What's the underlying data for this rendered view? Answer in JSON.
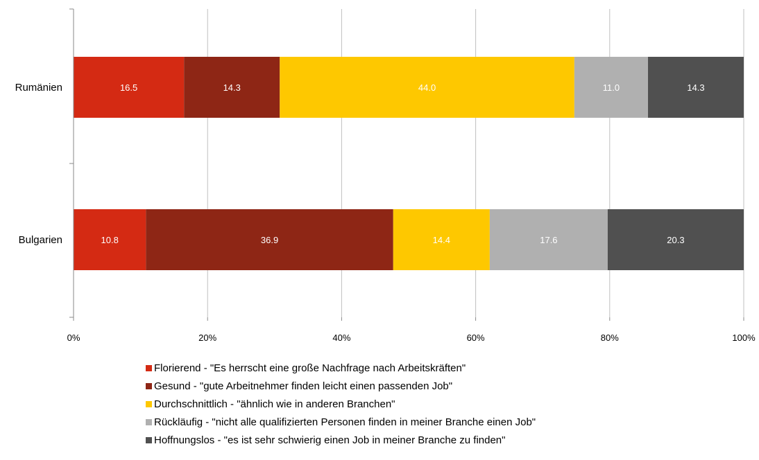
{
  "chart_data": {
    "type": "bar",
    "orientation": "horizontal",
    "stacked": "percent",
    "categories": [
      "Rumänien",
      "Bulgarien"
    ],
    "series": [
      {
        "name": "Florierend - \"Es herrscht eine große Nachfrage nach Arbeitskräften\"",
        "color": "#d42a13",
        "label_color": "#ffffff",
        "values": [
          16.5,
          10.8
        ]
      },
      {
        "name": "Gesund - \"gute Arbeitnehmer finden leicht einen passenden Job\"",
        "color": "#8e2615",
        "label_color": "#ffffff",
        "values": [
          14.3,
          36.9
        ]
      },
      {
        "name": "Durchschnittlich - \"ähnlich wie in anderen Branchen\"",
        "color": "#fec800",
        "label_color": "#ffffff",
        "values": [
          44.0,
          14.4
        ]
      },
      {
        "name": "Rückläufig - \"nicht alle qualifizierten Personen finden in meiner Branche einen Job\"",
        "color": "#b0b0b0",
        "label_color": "#ffffff",
        "values": [
          11.0,
          17.6
        ]
      },
      {
        "name": "Hoffnungslos - \"es ist sehr schwierig einen Job in meiner Branche zu finden\"",
        "color": "#505050",
        "label_color": "#ffffff",
        "values": [
          14.3,
          20.3
        ]
      }
    ],
    "value_labels": [
      "16.5",
      "14.3",
      "44.0",
      "11.0",
      "14.3",
      "10.8",
      "36.9",
      "14.4",
      "17.6",
      "20.3"
    ],
    "xlim": [
      0,
      100
    ],
    "x_ticks": [
      "0%",
      "20%",
      "40%",
      "60%",
      "80%",
      "100%"
    ],
    "gridlines": "vertical",
    "legend_position": "bottom",
    "grid_color": "#bfbfbf"
  }
}
